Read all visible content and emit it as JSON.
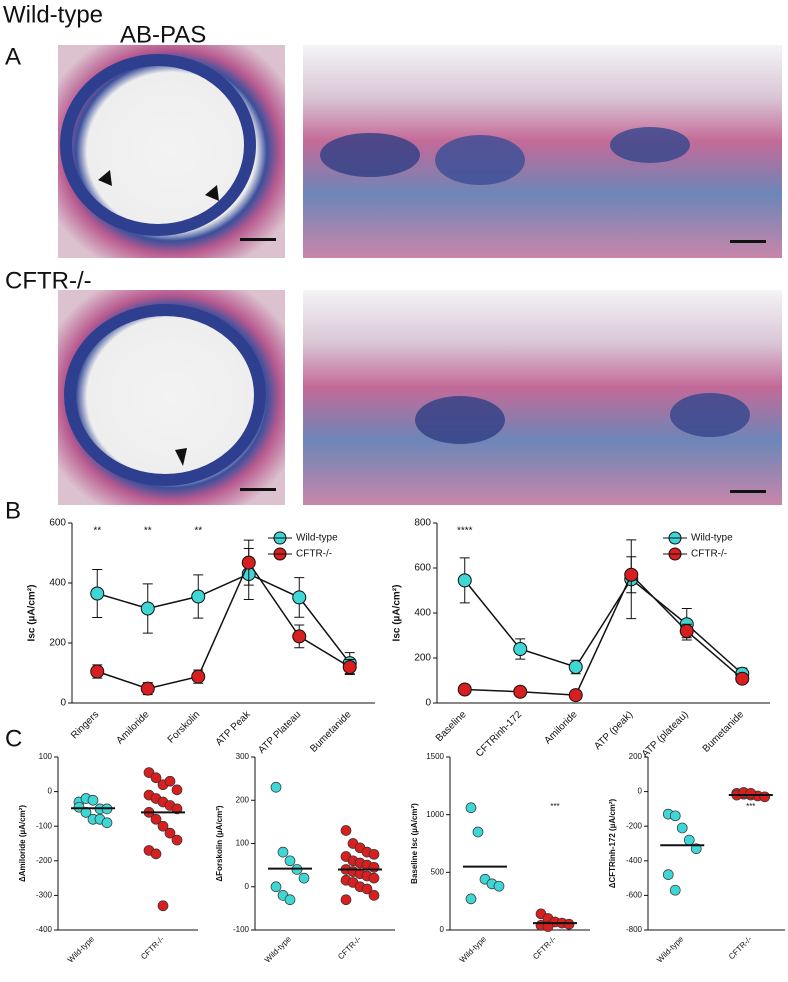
{
  "figure": {
    "title": "Wild-type",
    "stain": "AB-PAS",
    "panel_a": "A",
    "row2_title": "CFTR-/-",
    "panel_b": "B",
    "panel_c": "C"
  },
  "chart_data": [
    {
      "type": "line",
      "categories": [
        "Ringers",
        "Amiloride",
        "Forskolin",
        "ATP Peak",
        "ATP Plateau",
        "Bumetanide"
      ],
      "y_label": "Isc (µA/cm²)",
      "ylim": [
        0,
        600
      ],
      "yticks": [
        0,
        200,
        400,
        600
      ],
      "legend": "upper right",
      "series": [
        {
          "name": "Wild-type",
          "color": "#3fd6d6",
          "values": [
            365,
            315,
            355,
            430,
            352,
            133
          ],
          "errors": [
            80,
            82,
            72,
            85,
            66,
            35
          ]
        },
        {
          "name": "CFTR-/-",
          "color": "#d81f1f",
          "values": [
            105,
            48,
            88,
            468,
            222,
            120
          ],
          "errors": [
            22,
            20,
            22,
            75,
            38,
            25
          ]
        }
      ],
      "annotations": [
        {
          "text": "**",
          "category": "Ringers"
        },
        {
          "text": "**",
          "category": "Amiloride"
        },
        {
          "text": "**",
          "category": "Forskolin"
        }
      ]
    },
    {
      "type": "line",
      "categories": [
        "Baseline",
        "CFTRinh-172",
        "Amiloride",
        "ATP (peak)",
        "ATP (plateau)",
        "Bumetanide"
      ],
      "y_label": "Isc (µA/cm²)",
      "ylim": [
        0,
        800
      ],
      "yticks": [
        0,
        200,
        400,
        600,
        800
      ],
      "legend": "upper right",
      "series": [
        {
          "name": "Wild-type",
          "color": "#3fd6d6",
          "values": [
            545,
            240,
            160,
            550,
            350,
            130
          ],
          "errors": [
            100,
            45,
            30,
            175,
            70,
            25
          ]
        },
        {
          "name": "CFTR-/-",
          "color": "#d81f1f",
          "values": [
            60,
            50,
            35,
            570,
            320,
            108
          ],
          "errors": [
            8,
            8,
            8,
            80,
            30,
            15
          ]
        }
      ],
      "annotations": [
        {
          "text": "****",
          "category": "Baseline"
        }
      ]
    },
    {
      "type": "strip",
      "y_label": "ΔAmiloride (µA/cm²)",
      "ylim": [
        -400,
        100
      ],
      "yticks": [
        -400,
        -300,
        -200,
        -100,
        0,
        100
      ],
      "series": [
        {
          "name": "Wild-type",
          "color": "#3fd6d6",
          "values": [
            -30,
            -20,
            -25,
            -50,
            -50,
            -45,
            -60,
            -80,
            -80,
            -90
          ],
          "mean": -48
        },
        {
          "name": "CFTR-/-",
          "color": "#d81f1f",
          "values": [
            55,
            40,
            20,
            30,
            5,
            -10,
            -20,
            -30,
            -40,
            -50,
            -60,
            -80,
            -100,
            -120,
            -140,
            -170,
            -180,
            -330
          ],
          "mean": -60
        }
      ],
      "annotations": []
    },
    {
      "type": "strip",
      "y_label": "ΔForskolin (µA/cm²)",
      "ylim": [
        -100,
        300
      ],
      "yticks": [
        -100,
        0,
        100,
        200,
        300
      ],
      "series": [
        {
          "name": "Wild-type",
          "color": "#3fd6d6",
          "values": [
            230,
            80,
            60,
            40,
            20,
            0,
            -20,
            -30
          ],
          "mean": 42
        },
        {
          "name": "CFTR-/-",
          "color": "#d81f1f",
          "values": [
            130,
            100,
            90,
            80,
            75,
            70,
            60,
            55,
            50,
            45,
            40,
            35,
            30,
            25,
            20,
            15,
            10,
            0,
            -5,
            -20,
            -30
          ],
          "mean": 40
        }
      ],
      "annotations": []
    },
    {
      "type": "strip",
      "y_label": "Baseline Isc (µA/cm²)",
      "ylim": [
        0,
        1500
      ],
      "yticks": [
        0,
        500,
        1000,
        1500
      ],
      "series": [
        {
          "name": "Wild-type",
          "color": "#3fd6d6",
          "values": [
            1060,
            850,
            440,
            400,
            380,
            270
          ],
          "mean": 550
        },
        {
          "name": "CFTR-/-",
          "color": "#d81f1f",
          "values": [
            140,
            100,
            70,
            60,
            50,
            40,
            30
          ],
          "mean": 60
        }
      ],
      "annotations": [
        {
          "text": "***",
          "series": "CFTR-/-"
        }
      ]
    },
    {
      "type": "strip",
      "y_label": "ΔCFTRinh-172 (µA/cm²)",
      "ylim": [
        -800,
        200
      ],
      "yticks": [
        -800,
        -600,
        -400,
        -200,
        0,
        200
      ],
      "series": [
        {
          "name": "Wild-type",
          "color": "#3fd6d6",
          "values": [
            -130,
            -140,
            -210,
            -280,
            -330,
            -480,
            -570
          ],
          "mean": -310
        },
        {
          "name": "CFTR-/-",
          "color": "#d81f1f",
          "values": [
            -10,
            -15,
            -20,
            -25,
            -30,
            -20,
            -5,
            -10
          ],
          "mean": -20
        }
      ],
      "annotations": [
        {
          "text": "***",
          "series": "CFTR-/-"
        }
      ]
    }
  ]
}
